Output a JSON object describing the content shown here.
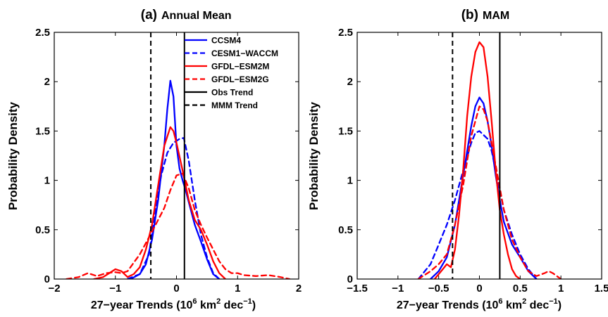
{
  "chart_data": [
    {
      "type": "line",
      "panel_label": "(a)",
      "title": "Annual Mean",
      "xlabel_main": "27−year Trends (10",
      "xlabel_sup1": "6",
      "xlabel_mid": " km",
      "xlabel_sup2": "2",
      "xlabel_end": " dec",
      "xlabel_sup3": "−1",
      "xlabel_close": ")",
      "ylabel": "Probability Density",
      "xlim": [
        -2,
        2
      ],
      "ylim": [
        0,
        2.5
      ],
      "xticks": [
        -2,
        -1,
        0,
        1,
        2
      ],
      "xtick_labels": [
        "−2",
        "−1",
        "0",
        "1",
        "2"
      ],
      "yticks": [
        0,
        0.5,
        1,
        1.5,
        2,
        2.5
      ],
      "ytick_labels": [
        "0",
        "0.5",
        "1",
        "1.5",
        "2",
        "2.5"
      ],
      "legend_position": "top-right",
      "series": [
        {
          "name": "CCSM4",
          "color": "#0000ff",
          "dash": "solid",
          "x": [
            -0.75,
            -0.6,
            -0.5,
            -0.4,
            -0.3,
            -0.2,
            -0.15,
            -0.1,
            -0.05,
            0,
            0.05,
            0.1,
            0.15,
            0.2,
            0.3,
            0.4,
            0.5,
            0.6,
            0.7
          ],
          "y": [
            0,
            0.05,
            0.15,
            0.4,
            0.8,
            1.35,
            1.72,
            2.01,
            1.85,
            1.35,
            1.12,
            1.0,
            0.9,
            0.78,
            0.55,
            0.38,
            0.2,
            0.05,
            0
          ]
        },
        {
          "name": "CESM1−WACCM",
          "color": "#0000ff",
          "dash": "dashed",
          "x": [
            -0.8,
            -0.6,
            -0.45,
            -0.35,
            -0.25,
            -0.15,
            -0.05,
            0.05,
            0.12,
            0.2,
            0.3,
            0.4,
            0.5,
            0.6,
            0.7
          ],
          "y": [
            0,
            0.05,
            0.25,
            0.68,
            1.05,
            1.28,
            1.38,
            1.42,
            1.43,
            1.2,
            0.8,
            0.45,
            0.22,
            0.06,
            0
          ]
        },
        {
          "name": "GFDL−ESM2M",
          "color": "#ff0000",
          "dash": "solid",
          "x": [
            -1.35,
            -1.2,
            -1.1,
            -1.0,
            -0.9,
            -0.8,
            -0.7,
            -0.6,
            -0.5,
            -0.4,
            -0.3,
            -0.2,
            -0.1,
            -0.05,
            0,
            0.1,
            0.2,
            0.3,
            0.4,
            0.5,
            0.6,
            0.7,
            0.8
          ],
          "y": [
            0,
            0.02,
            0.06,
            0.1,
            0.08,
            0.02,
            0.05,
            0.12,
            0.3,
            0.55,
            0.95,
            1.35,
            1.54,
            1.5,
            1.38,
            1.1,
            0.8,
            0.6,
            0.5,
            0.35,
            0.18,
            0.06,
            0
          ]
        },
        {
          "name": "GFDL−ESM2G",
          "color": "#ff0000",
          "dash": "dashed",
          "x": [
            -1.8,
            -1.6,
            -1.45,
            -1.3,
            -1.15,
            -1.0,
            -0.9,
            -0.8,
            -0.6,
            -0.4,
            -0.2,
            -0.1,
            0,
            0.1,
            0.2,
            0.3,
            0.4,
            0.5,
            0.6,
            0.7,
            0.8,
            0.9,
            1.0,
            1.1,
            1.3,
            1.5,
            1.7,
            1.85
          ],
          "y": [
            0,
            0.02,
            0.06,
            0.03,
            0.06,
            0.07,
            0.06,
            0.08,
            0.25,
            0.48,
            0.72,
            0.9,
            1.05,
            1.07,
            0.92,
            0.7,
            0.55,
            0.42,
            0.3,
            0.18,
            0.1,
            0.06,
            0.06,
            0.04,
            0.03,
            0.04,
            0.02,
            0
          ]
        },
        {
          "name": "Obs Trend",
          "color": "#000000",
          "dash": "solid",
          "vline": 0.13
        },
        {
          "name": "MMM Trend",
          "color": "#000000",
          "dash": "dashed",
          "vline": -0.42
        }
      ]
    },
    {
      "type": "line",
      "panel_label": "(b)",
      "title": "MAM",
      "xlabel_main": "27−year Trends (10",
      "xlabel_sup1": "6",
      "xlabel_mid": " km",
      "xlabel_sup2": "2",
      "xlabel_end": " dec",
      "xlabel_sup3": "−1",
      "xlabel_close": ")",
      "ylabel": "Probability Density",
      "xlim": [
        -1.5,
        1.5
      ],
      "ylim": [
        0,
        2.5
      ],
      "xticks": [
        -1.5,
        -1,
        -0.5,
        0,
        0.5,
        1,
        1.5
      ],
      "xtick_labels": [
        "−1.5",
        "−1",
        "−0.5",
        "0",
        "0.5",
        "1",
        "1.5"
      ],
      "yticks": [
        0,
        0.5,
        1,
        1.5,
        2,
        2.5
      ],
      "ytick_labels": [
        "0",
        "0.5",
        "1",
        "1.5",
        "2",
        "2.5"
      ],
      "legend_position": "none",
      "series": [
        {
          "name": "CCSM4",
          "color": "#0000ff",
          "dash": "solid",
          "x": [
            -0.6,
            -0.5,
            -0.4,
            -0.3,
            -0.2,
            -0.1,
            -0.05,
            0,
            0.05,
            0.1,
            0.15,
            0.2,
            0.25,
            0.3,
            0.4,
            0.5,
            0.6,
            0.7
          ],
          "y": [
            0,
            0.08,
            0.22,
            0.55,
            1.05,
            1.55,
            1.75,
            1.84,
            1.78,
            1.6,
            1.35,
            1.05,
            0.8,
            0.58,
            0.35,
            0.22,
            0.08,
            0
          ]
        },
        {
          "name": "CESM1−WACCM",
          "color": "#0000ff",
          "dash": "dashed",
          "x": [
            -0.75,
            -0.6,
            -0.5,
            -0.4,
            -0.3,
            -0.2,
            -0.1,
            -0.05,
            0,
            0.05,
            0.1,
            0.15,
            0.2,
            0.3,
            0.4,
            0.5,
            0.6,
            0.7
          ],
          "y": [
            0,
            0.15,
            0.35,
            0.55,
            0.8,
            1.1,
            1.38,
            1.48,
            1.5,
            1.46,
            1.42,
            1.3,
            1.1,
            0.7,
            0.45,
            0.25,
            0.1,
            0
          ]
        },
        {
          "name": "GFDL−ESM2M",
          "color": "#ff0000",
          "dash": "solid",
          "x": [
            -0.55,
            -0.45,
            -0.4,
            -0.35,
            -0.3,
            -0.25,
            -0.2,
            -0.15,
            -0.1,
            -0.05,
            0,
            0.05,
            0.1,
            0.15,
            0.2,
            0.25,
            0.3,
            0.35,
            0.4,
            0.45,
            0.5
          ],
          "y": [
            0,
            0.1,
            0.15,
            0.12,
            0.3,
            0.65,
            1.1,
            1.65,
            2.05,
            2.3,
            2.4,
            2.35,
            2.05,
            1.6,
            1.1,
            0.7,
            0.45,
            0.25,
            0.1,
            0.03,
            0
          ]
        },
        {
          "name": "GFDL−ESM2G",
          "color": "#ff0000",
          "dash": "dashed",
          "x": [
            -0.75,
            -0.6,
            -0.5,
            -0.4,
            -0.3,
            -0.2,
            -0.1,
            0,
            0.05,
            0.1,
            0.2,
            0.3,
            0.4,
            0.5,
            0.6,
            0.7,
            0.8,
            0.85,
            0.9,
            0.95,
            1.0
          ],
          "y": [
            0,
            0.08,
            0.15,
            0.25,
            0.55,
            0.95,
            1.45,
            1.75,
            1.72,
            1.6,
            1.15,
            0.7,
            0.4,
            0.22,
            0.08,
            0.03,
            0.06,
            0.08,
            0.06,
            0.03,
            0
          ]
        },
        {
          "name": "Obs Trend",
          "color": "#000000",
          "dash": "solid",
          "vline": 0.25
        },
        {
          "name": "MMM Trend",
          "color": "#000000",
          "dash": "dashed",
          "vline": -0.33
        }
      ]
    }
  ]
}
